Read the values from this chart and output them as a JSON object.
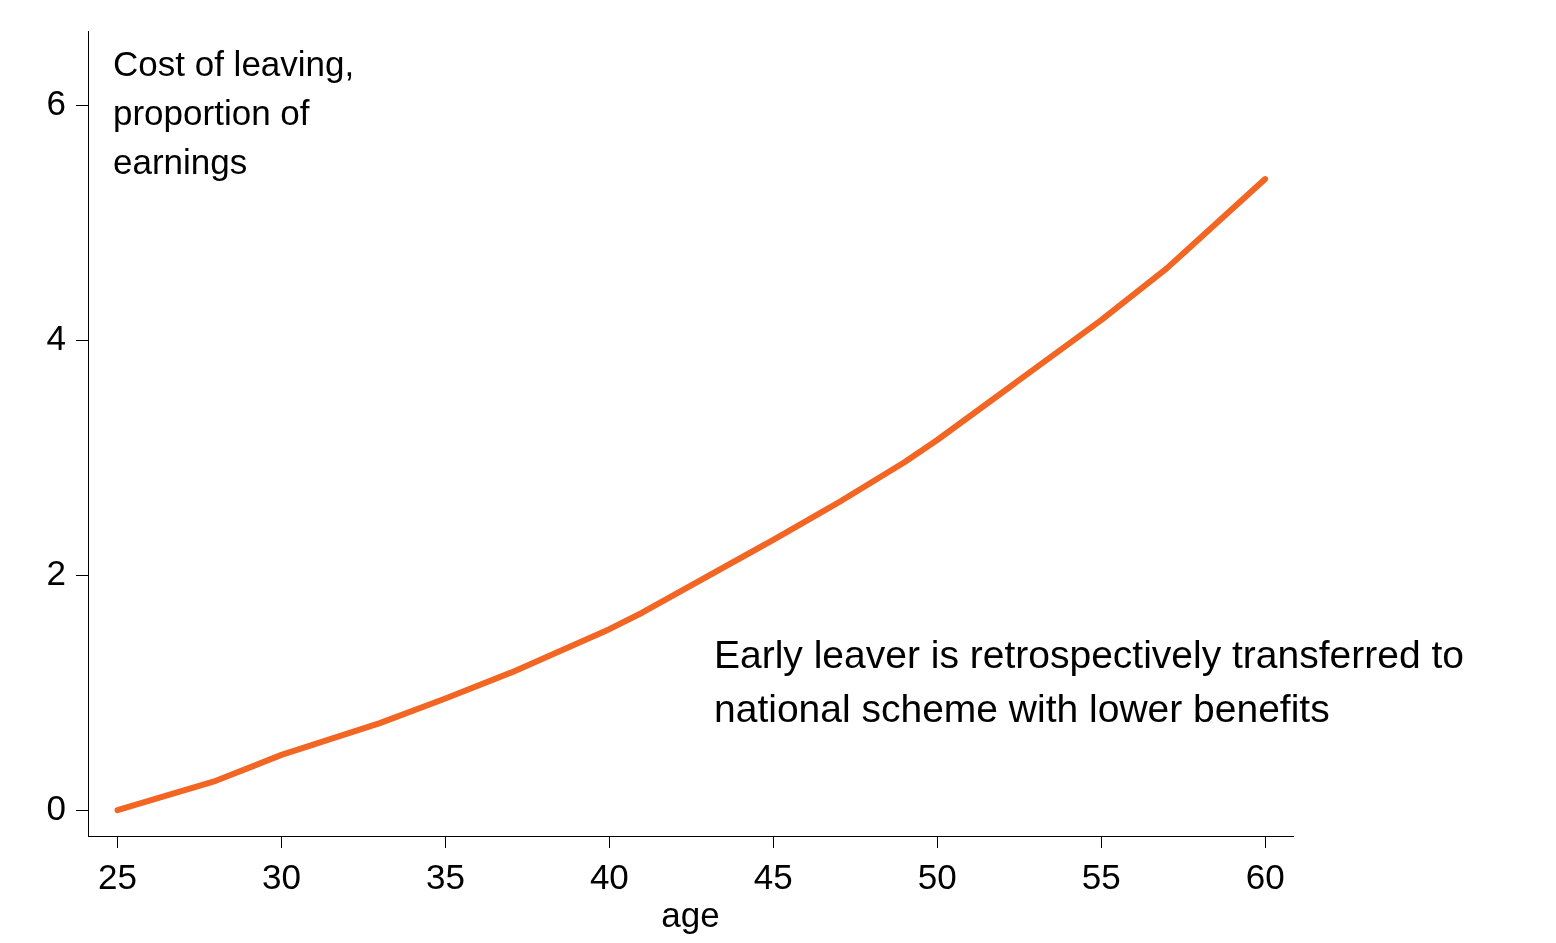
{
  "chart_data": {
    "type": "line",
    "ylabel": "Cost of leaving, proportion of earnings",
    "xlabel": "age",
    "annotations": [
      "Early leaver is retrospectively transferred to national scheme with lower benefits"
    ],
    "x": [
      25,
      28,
      30,
      33,
      35,
      37,
      40,
      41,
      45,
      47,
      49,
      50,
      55,
      57,
      60
    ],
    "series": [
      {
        "color": "#f26522",
        "values": [
          0,
          0.25,
          0.47,
          0.74,
          0.95,
          1.17,
          1.54,
          1.68,
          2.3,
          2.62,
          2.96,
          3.15,
          4.17,
          4.61,
          5.37
        ]
      }
    ],
    "xlim": [
      24.1,
      60.85
    ],
    "ylim": [
      -0.22,
      6.63
    ],
    "xticks": [
      25,
      30,
      35,
      40,
      45,
      50,
      55,
      60
    ],
    "yticks": [
      0,
      2,
      4,
      6
    ],
    "grid": false,
    "legend": false,
    "marker": "none",
    "line_style": "solid"
  }
}
